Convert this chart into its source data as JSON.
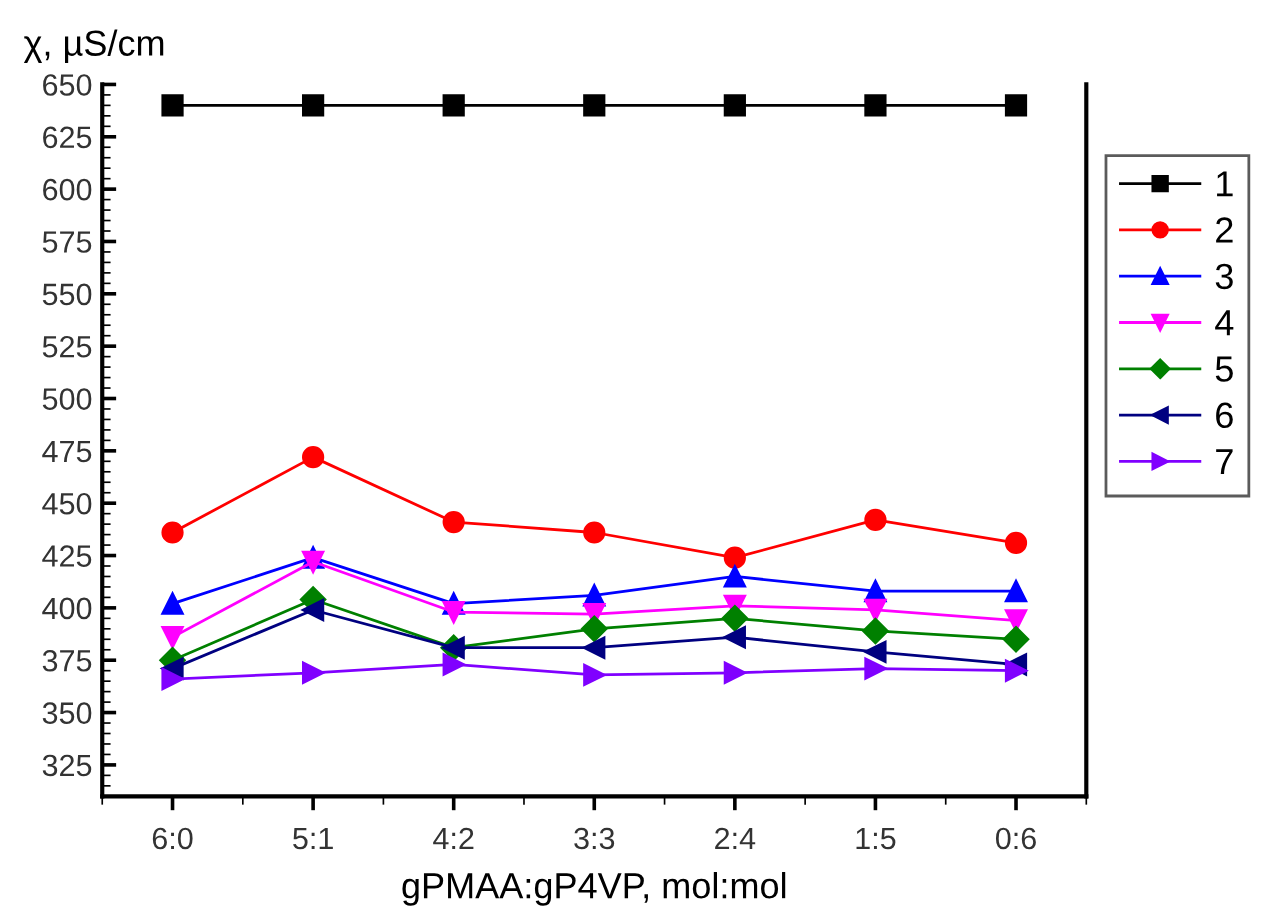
{
  "chart_data": {
    "type": "line",
    "ylabel": "χ, µS/cm",
    "xlabel": "gPMAA:gP4VP, mol:mol",
    "categories": [
      "6:0",
      "5:1",
      "4:2",
      "3:3",
      "2:4",
      "1:5",
      "0:6"
    ],
    "ylim": [
      310,
      650
    ],
    "yticks": [
      325,
      350,
      375,
      400,
      425,
      450,
      475,
      500,
      525,
      550,
      575,
      600,
      625,
      650
    ],
    "legend": "right",
    "grid": false,
    "line_style": "solid",
    "series": [
      {
        "name": "1",
        "color": "#000000",
        "marker": "square",
        "values": [
          640,
          640,
          640,
          640,
          640,
          640,
          640
        ]
      },
      {
        "name": "2",
        "color": "#ff0000",
        "marker": "circle",
        "values": [
          436,
          472,
          441,
          436,
          424,
          442,
          431
        ]
      },
      {
        "name": "3",
        "color": "#0000ff",
        "marker": "triangle",
        "values": [
          402,
          424,
          402,
          406,
          415,
          408,
          408
        ]
      },
      {
        "name": "4",
        "color": "#ff00ff",
        "marker": "triangle-down",
        "values": [
          386,
          422,
          398,
          397,
          401,
          399,
          394
        ]
      },
      {
        "name": "5",
        "color": "#008000",
        "marker": "diamond",
        "values": [
          375,
          404,
          381,
          390,
          395,
          389,
          385
        ]
      },
      {
        "name": "6",
        "color": "#000080",
        "marker": "triangle-left",
        "values": [
          371,
          399,
          381,
          381,
          386,
          379,
          373
        ]
      },
      {
        "name": "7",
        "color": "#8000ff",
        "marker": "triangle-right",
        "values": [
          366,
          369,
          373,
          368,
          369,
          371,
          370
        ]
      }
    ]
  }
}
